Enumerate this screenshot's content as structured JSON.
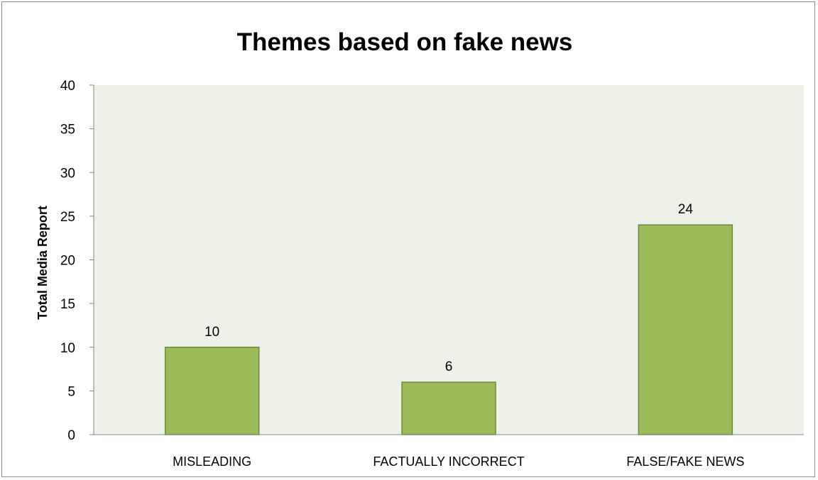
{
  "chart_data": {
    "type": "bar",
    "title": "Themes based on fake news",
    "xlabel": "",
    "ylabel": "Total Media Report",
    "categories": [
      "MISLEADING",
      "FACTUALLY INCORRECT",
      "FALSE/FAKE NEWS"
    ],
    "values": [
      10,
      6,
      24
    ],
    "data_labels": [
      "10",
      "6",
      "24"
    ],
    "ylim": [
      0,
      40
    ],
    "yticks": [
      "0",
      "5",
      "10",
      "15",
      "20",
      "25",
      "30",
      "35",
      "40"
    ],
    "grid": false,
    "legend": "none",
    "colors": {
      "bar_fill": "#9bbb59",
      "bar_stroke": "#71893f",
      "plot_background": "#eef1e8",
      "axis": "#868686"
    }
  }
}
